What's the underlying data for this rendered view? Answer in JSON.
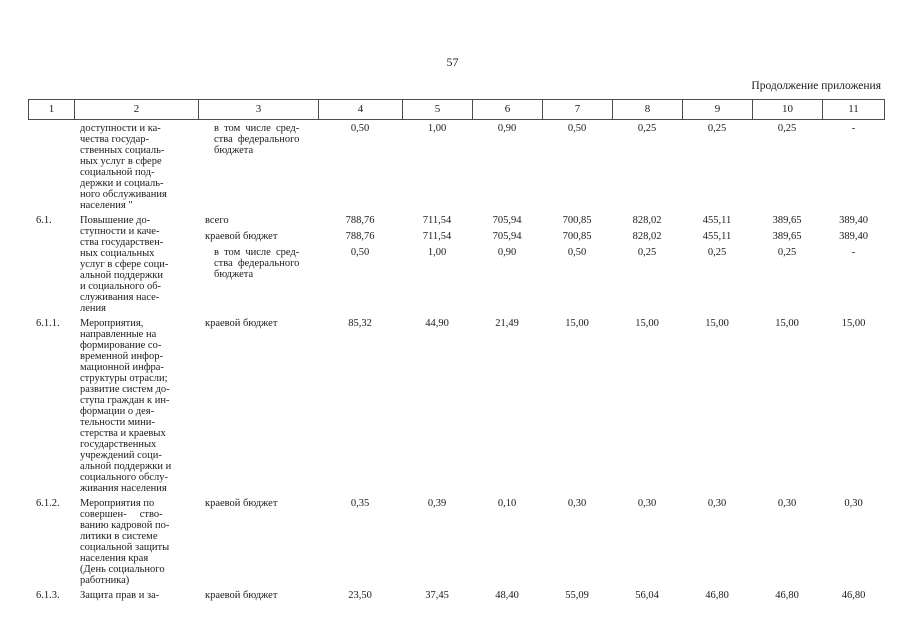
{
  "page": {
    "number": "57",
    "continuation_note": "Продолжение приложения"
  },
  "table": {
    "header_columns": [
      "1",
      "2",
      "3",
      "4",
      "5",
      "6",
      "7",
      "8",
      "9",
      "10",
      "11"
    ],
    "rows": [
      {
        "num": "",
        "name_lines": [
          "доступности и ка-",
          "чества государ-",
          "ственных социаль-",
          "ных услуг в сфере",
          "социальной под-",
          "держки и социаль-",
          "ного обслуживания",
          "населения \""
        ],
        "entries": [
          {
            "label_lines": [
              "в том числе сред-",
              "ства федерального",
              "бюджета"
            ],
            "indent": true,
            "values": [
              "0,50",
              "1,00",
              "0,90",
              "0,50",
              "0,25",
              "0,25",
              "0,25",
              "-"
            ]
          }
        ]
      },
      {
        "num": "6.1.",
        "name_lines": [
          "Повышение до-",
          "ступности и каче-",
          "ства государствен-",
          "ных социальных",
          "услуг в сфере соци-",
          "альной поддержки",
          "и социального об-",
          "служивания насе-",
          "ления"
        ],
        "entries": [
          {
            "label_lines": [
              "всего"
            ],
            "indent": false,
            "values": [
              "788,76",
              "711,54",
              "705,94",
              "700,85",
              "828,02",
              "455,11",
              "389,65",
              "389,40"
            ]
          },
          {
            "label_lines": [
              "краевой бюджет"
            ],
            "indent": false,
            "values": [
              "788,76",
              "711,54",
              "705,94",
              "700,85",
              "828,02",
              "455,11",
              "389,65",
              "389,40"
            ]
          },
          {
            "label_lines": [
              "в том числе сред-",
              "ства федерального",
              "бюджета"
            ],
            "indent": true,
            "values": [
              "0,50",
              "1,00",
              "0,90",
              "0,50",
              "0,25",
              "0,25",
              "0,25",
              "-"
            ]
          }
        ]
      },
      {
        "num": "6.1.1.",
        "name_lines": [
          "Мероприятия,",
          "направленные на",
          "формирование со-",
          "временной инфор-",
          "мационной инфра-",
          "структуры отрасли;",
          "развитие систем до-",
          "ступа граждан к ин-",
          "формации о дея-",
          "тельности мини-",
          "стерства и краевых",
          "государственных",
          "учреждений соци-",
          "альной поддержки и",
          "социального обслу-",
          "живания населения"
        ],
        "entries": [
          {
            "label_lines": [
              "краевой бюджет"
            ],
            "indent": false,
            "values": [
              "85,32",
              "44,90",
              "21,49",
              "15,00",
              "15,00",
              "15,00",
              "15,00",
              "15,00"
            ]
          }
        ]
      },
      {
        "num": "6.1.2.",
        "name_lines": [
          "Мероприятия по",
          "совершен-     ство-",
          "ванию кадровой по-",
          "литики в системе",
          "социальной защиты",
          "населения края",
          "(День социального",
          "работника)"
        ],
        "entries": [
          {
            "label_lines": [
              "краевой бюджет"
            ],
            "indent": false,
            "values": [
              "0,35",
              "0,39",
              "0,10",
              "0,30",
              "0,30",
              "0,30",
              "0,30",
              "0,30"
            ]
          }
        ]
      },
      {
        "num": "6.1.3.",
        "name_lines": [
          "Защита прав и за-"
        ],
        "entries": [
          {
            "label_lines": [
              "краевой бюджет"
            ],
            "indent": false,
            "values": [
              "23,50",
              "37,45",
              "48,40",
              "55,09",
              "56,04",
              "46,80",
              "46,80",
              "46,80"
            ]
          }
        ]
      }
    ]
  }
}
